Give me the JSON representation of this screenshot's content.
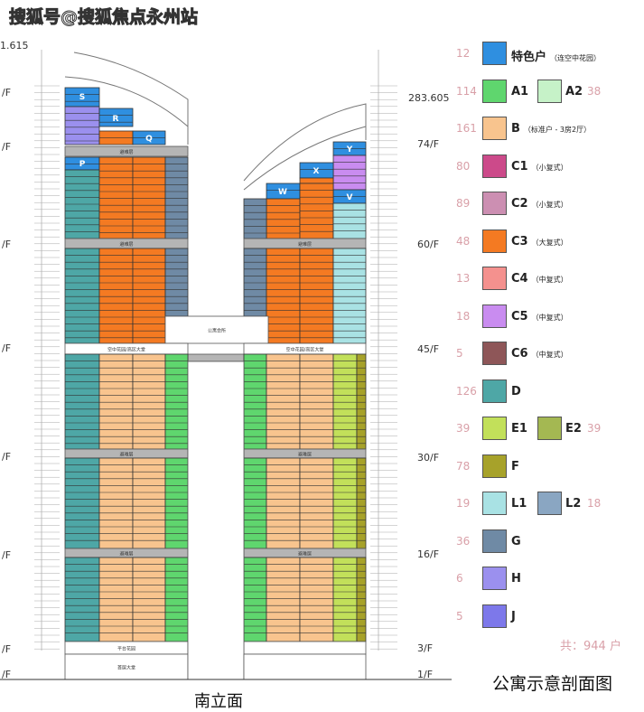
{
  "watermark": "搜狐号@搜狐焦点永州站",
  "elevations": {
    "left_top": "1.615",
    "right_top": "283.605"
  },
  "floor_labels_left": [
    "/F",
    "/F",
    "/F",
    "/F",
    "/F",
    "/F",
    "/F",
    "/F"
  ],
  "floor_labels_right": [
    "74/F",
    "60/F",
    "45/F",
    "30/F",
    "16/F",
    "3/F",
    "1/F"
  ],
  "unit_labels": [
    "S",
    "R",
    "Q",
    "P",
    "Y",
    "X",
    "W",
    "V"
  ],
  "zone_labels": {
    "refuge": "避难层",
    "sky_lobby": "空中花园/高区大堂",
    "club": "公寓会所",
    "platform": "平台花园",
    "lobby": "首层大堂"
  },
  "colors": {
    "special": "#2f8fe0",
    "A1": "#5fd66e",
    "A2": "#c6f2c8",
    "B": "#f8c48e",
    "C1": "#cc4a8a",
    "C2": "#cc8fb2",
    "C3": "#f47a22",
    "C4": "#f4918e",
    "C5": "#c98cf0",
    "C6": "#8e5658",
    "D": "#4ea7a6",
    "E1": "#c2e05a",
    "E2": "#a4b852",
    "F": "#a7a22a",
    "L1": "#a9e2e4",
    "L2": "#8aa6c2",
    "G": "#6f8aa5",
    "H": "#9b90ee",
    "J": "#7d78ea",
    "refuge": "#b5b5b5"
  },
  "legend": [
    {
      "count": "12",
      "label": "特色户",
      "note": "（连空中花园）",
      "color": "special"
    },
    {
      "count": "114",
      "label": "A1",
      "color": "A1",
      "label2": "A2",
      "count2": "38",
      "color2": "A2"
    },
    {
      "count": "161",
      "label": "B",
      "note": "（标准户 - 3房2厅）",
      "color": "B"
    },
    {
      "count": "80",
      "label": "C1",
      "note": "（小复式）",
      "color": "C1"
    },
    {
      "count": "89",
      "label": "C2",
      "note": "（小复式）",
      "color": "C2"
    },
    {
      "count": "48",
      "label": "C3",
      "note": "（大复式）",
      "color": "C3"
    },
    {
      "count": "13",
      "label": "C4",
      "note": "（中复式）",
      "color": "C4"
    },
    {
      "count": "18",
      "label": "C5",
      "note": "（中复式）",
      "color": "C5"
    },
    {
      "count": "5",
      "label": "C6",
      "note": "（中复式）",
      "color": "C6"
    },
    {
      "count": "126",
      "label": "D",
      "color": "D"
    },
    {
      "count": "39",
      "label": "E1",
      "color": "E1",
      "label2": "E2",
      "count2": "39",
      "color2": "E2"
    },
    {
      "count": "78",
      "label": "F",
      "color": "F"
    },
    {
      "count": "19",
      "label": "L1",
      "color": "L1",
      "label2": "L2",
      "count2": "18",
      "color2": "L2"
    },
    {
      "count": "36",
      "label": "G",
      "color": "G"
    },
    {
      "count": "6",
      "label": "H",
      "color": "H"
    },
    {
      "count": "5",
      "label": "J",
      "color": "J"
    }
  ],
  "total": "共：944 户",
  "caption": "公寓示意剖面图",
  "bottom_label": "南立面"
}
